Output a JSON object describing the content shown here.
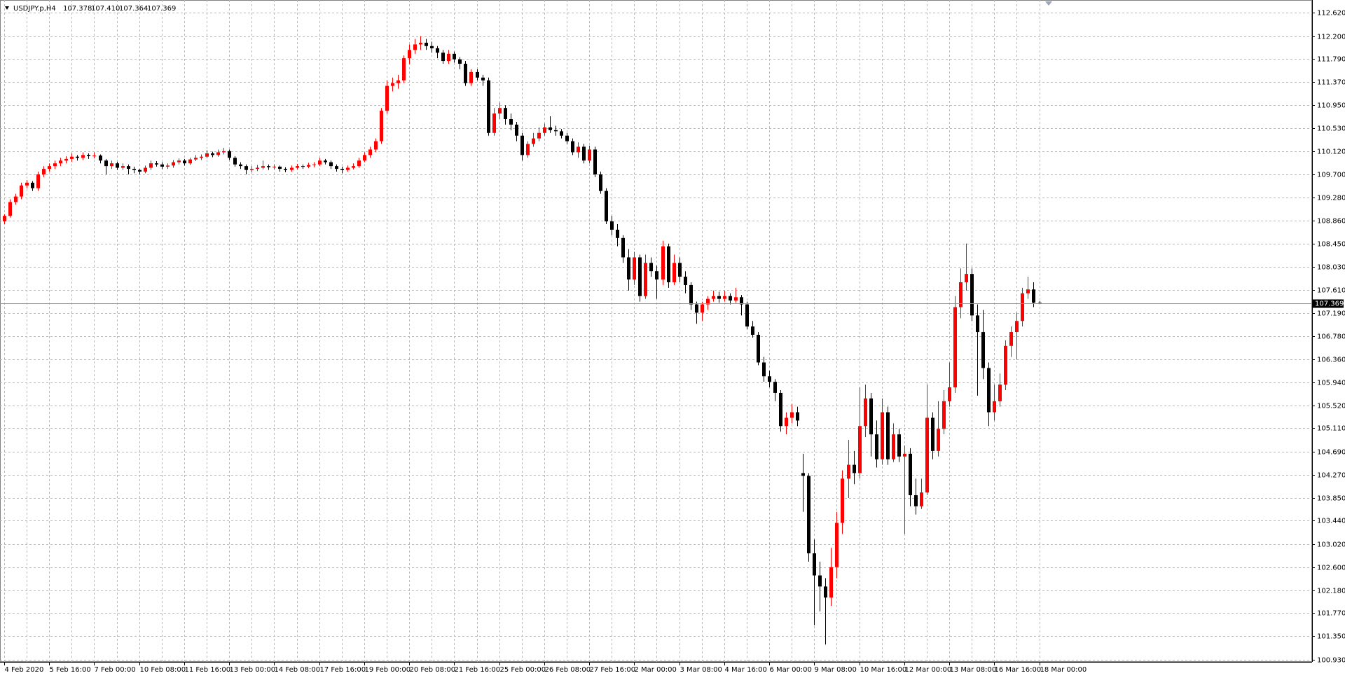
{
  "chart_data": {
    "type": "candlestick",
    "symbol": "USDJPY.p,H4",
    "quote_labels": [
      "107.378",
      "107.410",
      "107.364",
      "107.369"
    ],
    "up_color": "#ff0000",
    "down_color": "#000000",
    "grid": true,
    "ylim": [
      100.887,
      112.802
    ],
    "yticks": [
      {
        "value": 112.62,
        "label": "112.620"
      },
      {
        "value": 112.2,
        "label": "112.200"
      },
      {
        "value": 111.79,
        "label": "111.790"
      },
      {
        "value": 111.37,
        "label": "111.370"
      },
      {
        "value": 110.95,
        "label": "110.950"
      },
      {
        "value": 110.53,
        "label": "110.530"
      },
      {
        "value": 110.12,
        "label": "110.120"
      },
      {
        "value": 109.7,
        "label": "109.700"
      },
      {
        "value": 109.28,
        "label": "109.280"
      },
      {
        "value": 108.86,
        "label": "108.860"
      },
      {
        "value": 108.45,
        "label": "108.450"
      },
      {
        "value": 108.03,
        "label": "108.030"
      },
      {
        "value": 107.61,
        "label": "107.610"
      },
      {
        "value": 107.19,
        "label": "107.190"
      },
      {
        "value": 106.78,
        "label": "106.780"
      },
      {
        "value": 106.36,
        "label": "106.360"
      },
      {
        "value": 105.94,
        "label": "105.940"
      },
      {
        "value": 105.52,
        "label": "105.520"
      },
      {
        "value": 105.11,
        "label": "105.110"
      },
      {
        "value": 104.69,
        "label": "104.690"
      },
      {
        "value": 104.27,
        "label": "104.270"
      },
      {
        "value": 103.85,
        "label": "103.850"
      },
      {
        "value": 103.44,
        "label": "103.440"
      },
      {
        "value": 103.02,
        "label": "103.020"
      },
      {
        "value": 102.6,
        "label": "102.600"
      },
      {
        "value": 102.18,
        "label": "102.180"
      },
      {
        "value": 101.77,
        "label": "101.770"
      },
      {
        "value": 101.35,
        "label": "101.350"
      },
      {
        "value": 100.93,
        "label": "100.930"
      }
    ],
    "categories": [
      "4 Feb 2020",
      null,
      null,
      null,
      null,
      null,
      null,
      null,
      "5 Feb 16:00",
      null,
      null,
      null,
      null,
      null,
      null,
      null,
      "7 Feb 00:00",
      null,
      null,
      null,
      null,
      null,
      null,
      null,
      "10 Feb 08:00",
      null,
      null,
      null,
      null,
      null,
      null,
      null,
      "11 Feb 16:00",
      null,
      null,
      null,
      null,
      null,
      null,
      null,
      "13 Feb 00:00",
      null,
      null,
      null,
      null,
      null,
      null,
      null,
      "14 Feb 08:00",
      null,
      null,
      null,
      null,
      null,
      null,
      null,
      "17 Feb 16:00",
      null,
      null,
      null,
      null,
      null,
      null,
      null,
      "19 Feb 00:00",
      null,
      null,
      null,
      null,
      null,
      null,
      null,
      "20 Feb 08:00",
      null,
      null,
      null,
      null,
      null,
      null,
      null,
      "21 Feb 16:00",
      null,
      null,
      null,
      null,
      null,
      null,
      null,
      "25 Feb 00:00",
      null,
      null,
      null,
      null,
      null,
      null,
      null,
      "26 Feb 08:00",
      null,
      null,
      null,
      null,
      null,
      null,
      null,
      "27 Feb 16:00",
      null,
      null,
      null,
      null,
      null,
      null,
      null,
      "2 Mar 00:00",
      null,
      null,
      null,
      null,
      null,
      null,
      null,
      "3 Mar 08:00",
      null,
      null,
      null,
      null,
      null,
      null,
      null,
      "4 Mar 16:00",
      null,
      null,
      null,
      null,
      null,
      null,
      null,
      "6 Mar 00:00",
      null,
      null,
      null,
      null,
      null,
      null,
      null,
      "9 Mar 08:00",
      null,
      null,
      null,
      null,
      null,
      null,
      null,
      "10 Mar 16:00",
      null,
      null,
      null,
      null,
      null,
      null,
      null,
      "12 Mar 00:00",
      null,
      null,
      null,
      null,
      null,
      null,
      null,
      "13 Mar 08:00",
      null,
      null,
      null,
      null,
      null,
      null,
      null,
      "16 Mar 16:00",
      null,
      null,
      null,
      null,
      null,
      null,
      null,
      "18 Mar 00:00"
    ],
    "candles": [
      [
        108.85,
        108.98,
        108.8,
        108.95
      ],
      [
        108.95,
        109.25,
        108.92,
        109.2
      ],
      [
        109.2,
        109.35,
        109.15,
        109.3
      ],
      [
        109.3,
        109.55,
        109.25,
        109.5
      ],
      [
        109.5,
        109.6,
        109.45,
        109.55
      ],
      [
        109.55,
        109.58,
        109.4,
        109.45
      ],
      [
        109.45,
        109.75,
        109.4,
        109.7
      ],
      [
        109.7,
        109.85,
        109.65,
        109.8
      ],
      [
        109.8,
        109.9,
        109.75,
        109.85
      ],
      [
        109.85,
        109.95,
        109.8,
        109.9
      ],
      [
        109.9,
        110.0,
        109.85,
        109.95
      ],
      [
        109.95,
        110.03,
        109.9,
        109.98
      ],
      [
        109.98,
        110.08,
        109.93,
        110.02
      ],
      [
        110.02,
        110.05,
        109.95,
        110.0
      ],
      [
        110.0,
        110.1,
        109.96,
        110.05
      ],
      [
        110.05,
        110.08,
        109.98,
        110.03
      ],
      [
        110.03,
        110.1,
        109.99,
        110.04
      ],
      [
        110.04,
        110.06,
        109.9,
        109.95
      ],
      [
        109.95,
        109.98,
        109.7,
        109.85
      ],
      [
        109.85,
        109.95,
        109.8,
        109.9
      ],
      [
        109.9,
        109.93,
        109.78,
        109.82
      ],
      [
        109.82,
        109.9,
        109.78,
        109.85
      ],
      [
        109.85,
        109.88,
        109.7,
        109.8
      ],
      [
        109.8,
        109.84,
        109.72,
        109.78
      ],
      [
        109.78,
        109.8,
        109.7,
        109.75
      ],
      [
        109.75,
        109.86,
        109.72,
        109.82
      ],
      [
        109.82,
        109.95,
        109.78,
        109.9
      ],
      [
        109.9,
        109.94,
        109.84,
        109.88
      ],
      [
        109.88,
        109.92,
        109.8,
        109.84
      ],
      [
        109.84,
        109.9,
        109.8,
        109.86
      ],
      [
        109.86,
        109.96,
        109.82,
        109.92
      ],
      [
        109.92,
        109.99,
        109.88,
        109.95
      ],
      [
        109.95,
        109.98,
        109.86,
        109.9
      ],
      [
        109.9,
        110.0,
        109.87,
        109.97
      ],
      [
        109.97,
        110.05,
        109.94,
        110.0
      ],
      [
        110.0,
        110.06,
        109.96,
        110.02
      ],
      [
        110.02,
        110.14,
        109.99,
        110.08
      ],
      [
        110.08,
        110.11,
        110.01,
        110.05
      ],
      [
        110.05,
        110.15,
        110.02,
        110.1
      ],
      [
        110.1,
        110.18,
        110.06,
        110.12
      ],
      [
        110.12,
        110.15,
        109.96,
        110.0
      ],
      [
        110.0,
        110.03,
        109.84,
        109.88
      ],
      [
        109.88,
        109.92,
        109.8,
        109.85
      ],
      [
        109.85,
        109.88,
        109.7,
        109.78
      ],
      [
        109.78,
        109.85,
        109.74,
        109.8
      ],
      [
        109.8,
        109.87,
        109.76,
        109.82
      ],
      [
        109.82,
        109.95,
        109.79,
        109.85
      ],
      [
        109.85,
        109.88,
        109.78,
        109.83
      ],
      [
        109.83,
        109.88,
        109.79,
        109.84
      ],
      [
        109.84,
        109.86,
        109.75,
        109.8
      ],
      [
        109.8,
        109.83,
        109.74,
        109.78
      ],
      [
        109.78,
        109.86,
        109.75,
        109.82
      ],
      [
        109.82,
        109.89,
        109.79,
        109.85
      ],
      [
        109.85,
        109.88,
        109.8,
        109.84
      ],
      [
        109.84,
        109.91,
        109.81,
        109.87
      ],
      [
        109.87,
        109.92,
        109.83,
        109.88
      ],
      [
        109.88,
        110.0,
        109.85,
        109.95
      ],
      [
        109.95,
        109.98,
        109.88,
        109.92
      ],
      [
        109.92,
        109.95,
        109.8,
        109.85
      ],
      [
        109.85,
        109.88,
        109.75,
        109.8
      ],
      [
        109.8,
        109.84,
        109.72,
        109.78
      ],
      [
        109.78,
        109.86,
        109.75,
        109.82
      ],
      [
        109.82,
        109.9,
        109.79,
        109.85
      ],
      [
        109.85,
        110.0,
        109.82,
        109.95
      ],
      [
        109.95,
        110.1,
        109.92,
        110.05
      ],
      [
        110.05,
        110.2,
        110.0,
        110.15
      ],
      [
        110.15,
        110.35,
        110.1,
        110.3
      ],
      [
        110.3,
        110.9,
        110.25,
        110.85
      ],
      [
        110.85,
        111.4,
        110.8,
        111.3
      ],
      [
        111.3,
        111.45,
        111.2,
        111.35
      ],
      [
        111.35,
        111.5,
        111.25,
        111.4
      ],
      [
        111.4,
        111.85,
        111.35,
        111.8
      ],
      [
        111.8,
        112.05,
        111.7,
        111.95
      ],
      [
        111.95,
        112.15,
        111.88,
        112.05
      ],
      [
        112.05,
        112.2,
        111.95,
        112.08
      ],
      [
        112.08,
        112.15,
        111.95,
        112.02
      ],
      [
        112.02,
        112.1,
        111.9,
        111.98
      ],
      [
        111.98,
        112.02,
        111.8,
        111.9
      ],
      [
        111.9,
        111.95,
        111.7,
        111.75
      ],
      [
        111.75,
        111.95,
        111.7,
        111.88
      ],
      [
        111.88,
        111.92,
        111.72,
        111.78
      ],
      [
        111.78,
        111.82,
        111.6,
        111.7
      ],
      [
        111.7,
        111.75,
        111.3,
        111.35
      ],
      [
        111.35,
        111.6,
        111.3,
        111.55
      ],
      [
        111.55,
        111.6,
        111.4,
        111.45
      ],
      [
        111.45,
        111.5,
        111.3,
        111.4
      ],
      [
        111.4,
        111.45,
        110.4,
        110.45
      ],
      [
        110.45,
        110.9,
        110.4,
        110.8
      ],
      [
        110.8,
        111.0,
        110.7,
        110.9
      ],
      [
        110.9,
        110.95,
        110.6,
        110.7
      ],
      [
        110.7,
        110.8,
        110.5,
        110.6
      ],
      [
        110.6,
        110.65,
        110.3,
        110.4
      ],
      [
        110.4,
        110.45,
        109.95,
        110.05
      ],
      [
        110.05,
        110.3,
        110.0,
        110.25
      ],
      [
        110.25,
        110.45,
        110.2,
        110.35
      ],
      [
        110.35,
        110.55,
        110.3,
        110.45
      ],
      [
        110.45,
        110.62,
        110.4,
        110.55
      ],
      [
        110.55,
        110.75,
        110.45,
        110.5
      ],
      [
        110.5,
        110.58,
        110.4,
        110.48
      ],
      [
        110.48,
        110.52,
        110.35,
        110.4
      ],
      [
        110.4,
        110.45,
        110.25,
        110.3
      ],
      [
        110.3,
        110.35,
        110.05,
        110.1
      ],
      [
        110.1,
        110.28,
        110.0,
        110.2
      ],
      [
        110.2,
        110.25,
        109.9,
        109.95
      ],
      [
        109.95,
        110.22,
        109.9,
        110.15
      ],
      [
        110.15,
        110.2,
        109.65,
        109.7
      ],
      [
        109.7,
        109.75,
        109.35,
        109.4
      ],
      [
        109.4,
        109.45,
        108.8,
        108.85
      ],
      [
        108.85,
        108.95,
        108.6,
        108.7
      ],
      [
        108.7,
        108.8,
        108.4,
        108.55
      ],
      [
        108.55,
        108.6,
        108.1,
        108.2
      ],
      [
        108.2,
        108.35,
        107.6,
        107.8
      ],
      [
        107.8,
        108.3,
        107.7,
        108.2
      ],
      [
        108.2,
        108.25,
        107.4,
        107.5
      ],
      [
        107.5,
        108.25,
        107.45,
        108.1
      ],
      [
        108.1,
        108.2,
        107.85,
        107.95
      ],
      [
        107.95,
        108.05,
        107.45,
        107.8
      ],
      [
        107.8,
        108.5,
        107.7,
        108.4
      ],
      [
        108.4,
        108.45,
        107.65,
        107.75
      ],
      [
        107.75,
        108.25,
        107.7,
        108.1
      ],
      [
        108.1,
        108.2,
        107.75,
        107.85
      ],
      [
        107.85,
        107.95,
        107.55,
        107.7
      ],
      [
        107.7,
        107.75,
        107.25,
        107.35
      ],
      [
        107.35,
        107.4,
        107.0,
        107.2
      ],
      [
        107.2,
        107.4,
        107.05,
        107.35
      ],
      [
        107.35,
        107.5,
        107.25,
        107.45
      ],
      [
        107.45,
        107.6,
        107.4,
        107.5
      ],
      [
        107.5,
        107.58,
        107.38,
        107.45
      ],
      [
        107.45,
        107.6,
        107.4,
        107.5
      ],
      [
        107.5,
        107.55,
        107.35,
        107.42
      ],
      [
        107.42,
        107.65,
        107.38,
        107.48
      ],
      [
        107.48,
        107.52,
        107.15,
        107.35
      ],
      [
        107.35,
        107.4,
        106.9,
        106.95
      ],
      [
        106.95,
        107.05,
        106.75,
        106.8
      ],
      [
        106.8,
        106.85,
        106.25,
        106.3
      ],
      [
        106.3,
        106.4,
        105.95,
        106.05
      ],
      [
        106.05,
        106.15,
        105.85,
        105.95
      ],
      [
        105.95,
        106.0,
        105.6,
        105.75
      ],
      [
        105.75,
        105.8,
        105.05,
        105.15
      ],
      [
        105.15,
        105.4,
        105.0,
        105.3
      ],
      [
        105.3,
        105.55,
        105.2,
        105.4
      ],
      [
        105.4,
        105.5,
        105.15,
        105.25
      ],
      [
        104.3,
        104.65,
        103.6,
        104.25
      ],
      [
        104.25,
        104.3,
        102.7,
        102.85
      ],
      [
        102.85,
        103.1,
        101.55,
        102.45
      ],
      [
        102.45,
        102.7,
        101.8,
        102.25
      ],
      [
        102.25,
        102.4,
        101.2,
        102.05
      ],
      [
        102.05,
        102.95,
        101.9,
        102.6
      ],
      [
        102.6,
        103.6,
        102.4,
        103.4
      ],
      [
        103.4,
        104.35,
        103.2,
        104.2
      ],
      [
        104.2,
        104.9,
        103.85,
        104.45
      ],
      [
        104.45,
        104.7,
        104.1,
        104.3
      ],
      [
        104.3,
        105.85,
        104.2,
        105.15
      ],
      [
        105.15,
        105.9,
        104.95,
        105.65
      ],
      [
        105.65,
        105.75,
        104.6,
        105.0
      ],
      [
        105.0,
        105.25,
        104.4,
        104.55
      ],
      [
        104.55,
        105.65,
        104.45,
        105.4
      ],
      [
        105.4,
        105.5,
        104.45,
        104.55
      ],
      [
        104.55,
        105.2,
        104.5,
        105.0
      ],
      [
        105.0,
        105.1,
        104.5,
        104.6
      ],
      [
        104.6,
        104.8,
        103.2,
        104.65
      ],
      [
        104.65,
        104.75,
        103.7,
        103.9
      ],
      [
        103.9,
        104.2,
        103.55,
        103.7
      ],
      [
        103.7,
        104.2,
        103.65,
        103.95
      ],
      [
        103.95,
        105.9,
        103.9,
        105.3
      ],
      [
        105.3,
        105.4,
        104.55,
        104.7
      ],
      [
        104.7,
        105.6,
        104.6,
        105.1
      ],
      [
        105.1,
        105.8,
        105.0,
        105.6
      ],
      [
        105.6,
        106.3,
        105.5,
        105.85
      ],
      [
        105.85,
        107.5,
        105.75,
        107.3
      ],
      [
        107.3,
        108.0,
        107.1,
        107.75
      ],
      [
        107.75,
        108.45,
        107.6,
        107.9
      ],
      [
        107.9,
        108.0,
        107.05,
        107.15
      ],
      [
        107.15,
        107.35,
        105.7,
        106.85
      ],
      [
        106.85,
        107.25,
        106.0,
        106.2
      ],
      [
        106.2,
        106.3,
        105.15,
        105.4
      ],
      [
        105.4,
        105.9,
        105.25,
        105.6
      ],
      [
        105.6,
        106.1,
        105.5,
        105.9
      ],
      [
        105.9,
        106.7,
        105.8,
        106.6
      ],
      [
        106.6,
        106.95,
        106.4,
        106.85
      ],
      [
        106.85,
        107.2,
        106.35,
        107.05
      ],
      [
        107.05,
        107.65,
        106.95,
        107.55
      ],
      [
        107.55,
        107.85,
        107.45,
        107.62
      ],
      [
        107.62,
        107.75,
        107.3,
        107.38
      ],
      [
        107.378,
        107.41,
        107.364,
        107.369
      ]
    ]
  }
}
